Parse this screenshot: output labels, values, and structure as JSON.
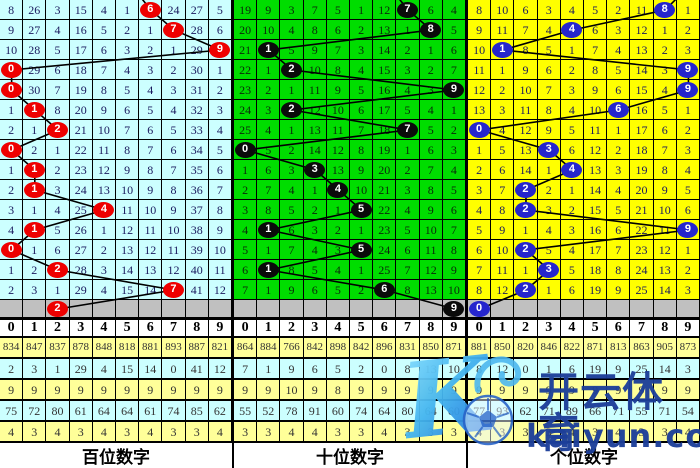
{
  "digit_headers": [
    "0",
    "1",
    "2",
    "3",
    "4",
    "5",
    "6",
    "7",
    "8",
    "9"
  ],
  "colors": {
    "grid_line": "#000000",
    "gray_row": "#c0c0c0",
    "stat_row_bgs": [
      "#ffff99",
      "#ccffff",
      "#ffff99",
      "#ccffff",
      "#ffff99"
    ],
    "header_bg": "#ffffff",
    "watermark_blue": "#1d3f9a"
  },
  "watermark": {
    "k_letter": "K",
    "brand_cn": "开云体育",
    "brand_url": "kaiyun.com",
    "football_icon": "football-icon"
  },
  "chart_data": {
    "type": "table",
    "title": "",
    "panels": [
      {
        "id": "hundreds",
        "label": "百位数字",
        "cell_bg": "#ccffff",
        "text_color": "#1a1a5e",
        "ball_color": "#ee0000",
        "entry_dx": -16,
        "rows": [
          [
            8,
            26,
            3,
            15,
            4,
            1,
            6,
            24,
            27,
            5
          ],
          [
            9,
            27,
            4,
            16,
            5,
            2,
            1,
            7,
            28,
            6
          ],
          [
            10,
            28,
            5,
            17,
            6,
            3,
            2,
            1,
            29,
            9
          ],
          [
            0,
            29,
            6,
            18,
            7,
            4,
            3,
            2,
            30,
            1
          ],
          [
            0,
            30,
            7,
            19,
            8,
            5,
            4,
            3,
            31,
            2
          ],
          [
            1,
            1,
            8,
            20,
            9,
            6,
            5,
            4,
            32,
            3
          ],
          [
            2,
            1,
            2,
            21,
            10,
            7,
            6,
            5,
            33,
            4
          ],
          [
            0,
            2,
            1,
            22,
            11,
            8,
            7,
            6,
            34,
            5
          ],
          [
            1,
            1,
            2,
            23,
            12,
            9,
            8,
            7,
            35,
            6
          ],
          [
            2,
            1,
            3,
            24,
            13,
            10,
            9,
            8,
            36,
            7
          ],
          [
            3,
            1,
            4,
            25,
            4,
            11,
            10,
            9,
            37,
            8
          ],
          [
            4,
            1,
            5,
            26,
            1,
            12,
            11,
            10,
            38,
            9
          ],
          [
            0,
            1,
            6,
            27,
            2,
            13,
            12,
            11,
            39,
            10
          ],
          [
            1,
            2,
            2,
            28,
            3,
            14,
            13,
            12,
            40,
            11
          ],
          [
            2,
            3,
            1,
            29,
            4,
            15,
            14,
            7,
            41,
            12
          ]
        ],
        "balls": [
          6,
          7,
          9,
          0,
          0,
          1,
          2,
          0,
          1,
          1,
          4,
          1,
          0,
          2,
          7
        ],
        "predicted": 2,
        "stats": [
          [
            834,
            847,
            837,
            878,
            848,
            818,
            881,
            893,
            887,
            821
          ],
          [
            2,
            3,
            1,
            29,
            4,
            15,
            14,
            0,
            41,
            12
          ],
          [
            9,
            9,
            9,
            9,
            9,
            9,
            9,
            9,
            9,
            9
          ],
          [
            75,
            72,
            80,
            61,
            64,
            64,
            61,
            74,
            85,
            62
          ],
          [
            4,
            3,
            4,
            3,
            4,
            3,
            4,
            3,
            3,
            4
          ]
        ]
      },
      {
        "id": "tens",
        "label": "十位数字",
        "cell_bg": "#00dd00",
        "text_color": "#0a2a0a",
        "ball_color": "#0a0a0a",
        "entry_dx": -16,
        "rows": [
          [
            19,
            9,
            3,
            7,
            5,
            1,
            12,
            7,
            6,
            4
          ],
          [
            20,
            10,
            4,
            8,
            6,
            2,
            13,
            1,
            8,
            5
          ],
          [
            21,
            1,
            5,
            9,
            7,
            3,
            14,
            2,
            1,
            6
          ],
          [
            22,
            1,
            2,
            10,
            8,
            4,
            15,
            3,
            2,
            7
          ],
          [
            23,
            2,
            1,
            11,
            9,
            5,
            16,
            4,
            3,
            9
          ],
          [
            24,
            3,
            2,
            12,
            10,
            6,
            17,
            5,
            4,
            1
          ],
          [
            25,
            4,
            1,
            13,
            11,
            7,
            18,
            7,
            5,
            2
          ],
          [
            0,
            5,
            2,
            14,
            12,
            8,
            19,
            1,
            6,
            3
          ],
          [
            1,
            6,
            3,
            3,
            13,
            9,
            20,
            2,
            7,
            4
          ],
          [
            2,
            7,
            4,
            1,
            4,
            10,
            21,
            3,
            8,
            5
          ],
          [
            3,
            8,
            5,
            2,
            1,
            5,
            22,
            4,
            9,
            6
          ],
          [
            4,
            1,
            6,
            3,
            2,
            1,
            23,
            5,
            10,
            7
          ],
          [
            5,
            1,
            7,
            4,
            3,
            5,
            24,
            6,
            11,
            8
          ],
          [
            6,
            1,
            8,
            5,
            4,
            1,
            25,
            7,
            12,
            9
          ],
          [
            7,
            1,
            9,
            6,
            5,
            2,
            6,
            8,
            13,
            10
          ]
        ],
        "balls": [
          7,
          8,
          1,
          2,
          9,
          2,
          7,
          0,
          3,
          4,
          5,
          1,
          5,
          1,
          6
        ],
        "predicted": 9,
        "stats": [
          [
            864,
            884,
            766,
            842,
            898,
            842,
            896,
            831,
            850,
            871
          ],
          [
            7,
            1,
            9,
            6,
            5,
            2,
            0,
            8,
            13,
            10
          ],
          [
            9,
            9,
            10,
            9,
            8,
            9,
            9,
            9,
            9,
            9
          ],
          [
            55,
            52,
            78,
            91,
            60,
            74,
            64,
            80,
            64,
            60
          ],
          [
            3,
            3,
            4,
            4,
            3,
            3,
            4,
            3,
            3,
            3
          ]
        ]
      },
      {
        "id": "units",
        "label": "个位数字",
        "cell_bg": "#ffff00",
        "text_color": "#1a1a5e",
        "ball_color": "#2525cd",
        "entry_dx": 20,
        "rows": [
          [
            8,
            10,
            6,
            3,
            4,
            5,
            2,
            11,
            8,
            1
          ],
          [
            9,
            11,
            7,
            4,
            4,
            6,
            3,
            12,
            1,
            2
          ],
          [
            10,
            1,
            8,
            5,
            1,
            7,
            4,
            13,
            2,
            3
          ],
          [
            11,
            1,
            9,
            6,
            2,
            8,
            5,
            14,
            3,
            9
          ],
          [
            12,
            2,
            10,
            7,
            3,
            9,
            6,
            15,
            4,
            9
          ],
          [
            13,
            3,
            11,
            8,
            4,
            10,
            6,
            16,
            5,
            1
          ],
          [
            0,
            4,
            12,
            9,
            5,
            11,
            1,
            17,
            6,
            2
          ],
          [
            1,
            5,
            13,
            3,
            6,
            12,
            2,
            18,
            7,
            3
          ],
          [
            2,
            6,
            14,
            1,
            4,
            13,
            3,
            19,
            8,
            4
          ],
          [
            3,
            7,
            2,
            2,
            1,
            14,
            4,
            20,
            9,
            5
          ],
          [
            4,
            8,
            2,
            3,
            2,
            15,
            5,
            21,
            10,
            6
          ],
          [
            5,
            9,
            1,
            4,
            3,
            16,
            6,
            22,
            11,
            9
          ],
          [
            6,
            10,
            2,
            5,
            4,
            17,
            7,
            23,
            12,
            1
          ],
          [
            7,
            11,
            1,
            3,
            5,
            18,
            8,
            24,
            13,
            2
          ],
          [
            8,
            12,
            2,
            1,
            6,
            19,
            9,
            25,
            14,
            3
          ]
        ],
        "balls": [
          8,
          4,
          1,
          9,
          9,
          6,
          0,
          3,
          4,
          2,
          2,
          9,
          2,
          3,
          2
        ],
        "predicted": 0,
        "stats": [
          [
            881,
            850,
            820,
            846,
            822,
            871,
            813,
            863,
            905,
            873
          ],
          [
            8,
            12,
            0,
            1,
            6,
            19,
            9,
            25,
            14,
            3
          ],
          [
            9,
            9,
            9,
            9,
            9,
            9,
            9,
            9,
            9,
            9
          ],
          [
            77,
            93,
            62,
            71,
            89,
            66,
            71,
            55,
            71,
            54
          ],
          [
            4,
            3,
            3,
            3,
            4,
            3,
            4,
            3,
            3,
            4
          ]
        ]
      }
    ]
  }
}
